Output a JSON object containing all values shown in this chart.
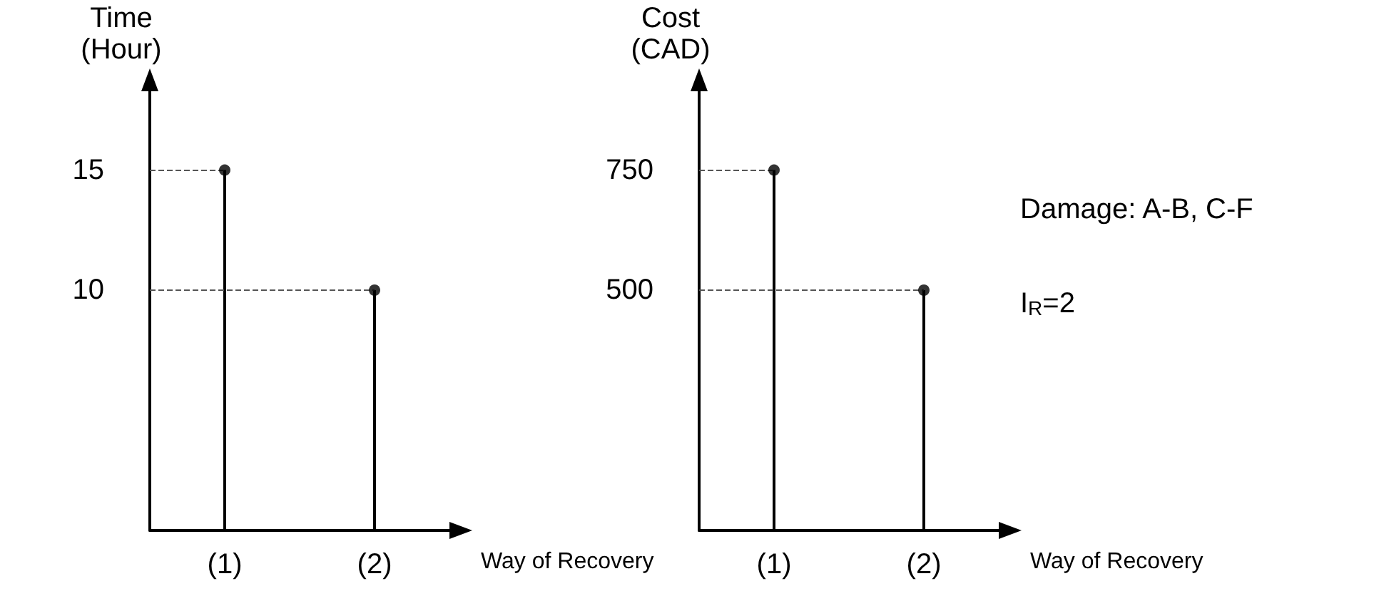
{
  "chart_data": [
    {
      "type": "lollipop",
      "categories": [
        "(1)",
        "(2)"
      ],
      "values": [
        15,
        10
      ],
      "color": "#000000",
      "marker": "circle",
      "ylabel": "Time (Hour)",
      "xlabel": "Way of Recovery",
      "ylim": [
        0,
        18.4
      ],
      "yticks": [
        10,
        15
      ],
      "ref_lines": [
        {
          "axis": "y",
          "value": 15,
          "line_style": "dashed",
          "color": "#555555"
        },
        {
          "axis": "y",
          "value": 10,
          "line_style": "dashed",
          "color": "#555555"
        }
      ]
    },
    {
      "type": "lollipop",
      "categories": [
        "(1)",
        "(2)"
      ],
      "values": [
        750,
        500
      ],
      "color": "#000000",
      "marker": "circle",
      "ylabel": "Cost (CAD)",
      "xlabel": "Way of Recovery",
      "ylim": [
        0,
        920
      ],
      "yticks": [
        500,
        750
      ],
      "ref_lines": [
        {
          "axis": "y",
          "value": 750,
          "line_style": "dashed",
          "color": "#555555"
        },
        {
          "axis": "y",
          "value": 500,
          "line_style": "dashed",
          "color": "#555555"
        }
      ],
      "annotations": [
        "Damage: A-B, C-F",
        "I$_{R}$=2"
      ]
    }
  ]
}
